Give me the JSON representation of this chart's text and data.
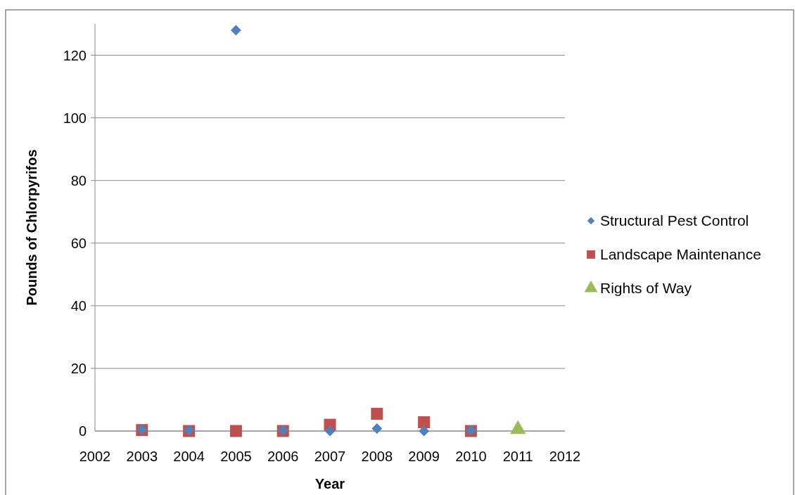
{
  "chart_data": {
    "type": "scatter",
    "xlabel": "Year",
    "ylabel": "Pounds of Chlorpyrifos",
    "xlim": [
      2002,
      2012
    ],
    "xticks": [
      2002,
      2003,
      2004,
      2005,
      2006,
      2007,
      2008,
      2009,
      2010,
      2011,
      2012
    ],
    "ylim": [
      0,
      130
    ],
    "yticks": [
      0,
      20,
      40,
      60,
      80,
      100,
      120
    ],
    "grid": "y",
    "legend": "right",
    "series": [
      {
        "name": "Structural Pest Control",
        "color": "#4f81bd",
        "marker": "diamond",
        "x": [
          2003,
          2004,
          2005,
          2006,
          2007,
          2008,
          2009,
          2010
        ],
        "values": [
          0.5,
          0.2,
          128,
          0.2,
          0,
          0.8,
          0,
          0.2
        ]
      },
      {
        "name": "Landscape Maintenance",
        "color": "#c0504d",
        "marker": "square",
        "x": [
          2003,
          2004,
          2005,
          2006,
          2007,
          2008,
          2009,
          2010
        ],
        "values": [
          0.3,
          0,
          0,
          0,
          2,
          5.5,
          2.8,
          0
        ]
      },
      {
        "name": "Rights of Way",
        "color": "#9bbb59",
        "marker": "triangle",
        "x": [
          2011
        ],
        "values": [
          0.5
        ]
      }
    ]
  }
}
